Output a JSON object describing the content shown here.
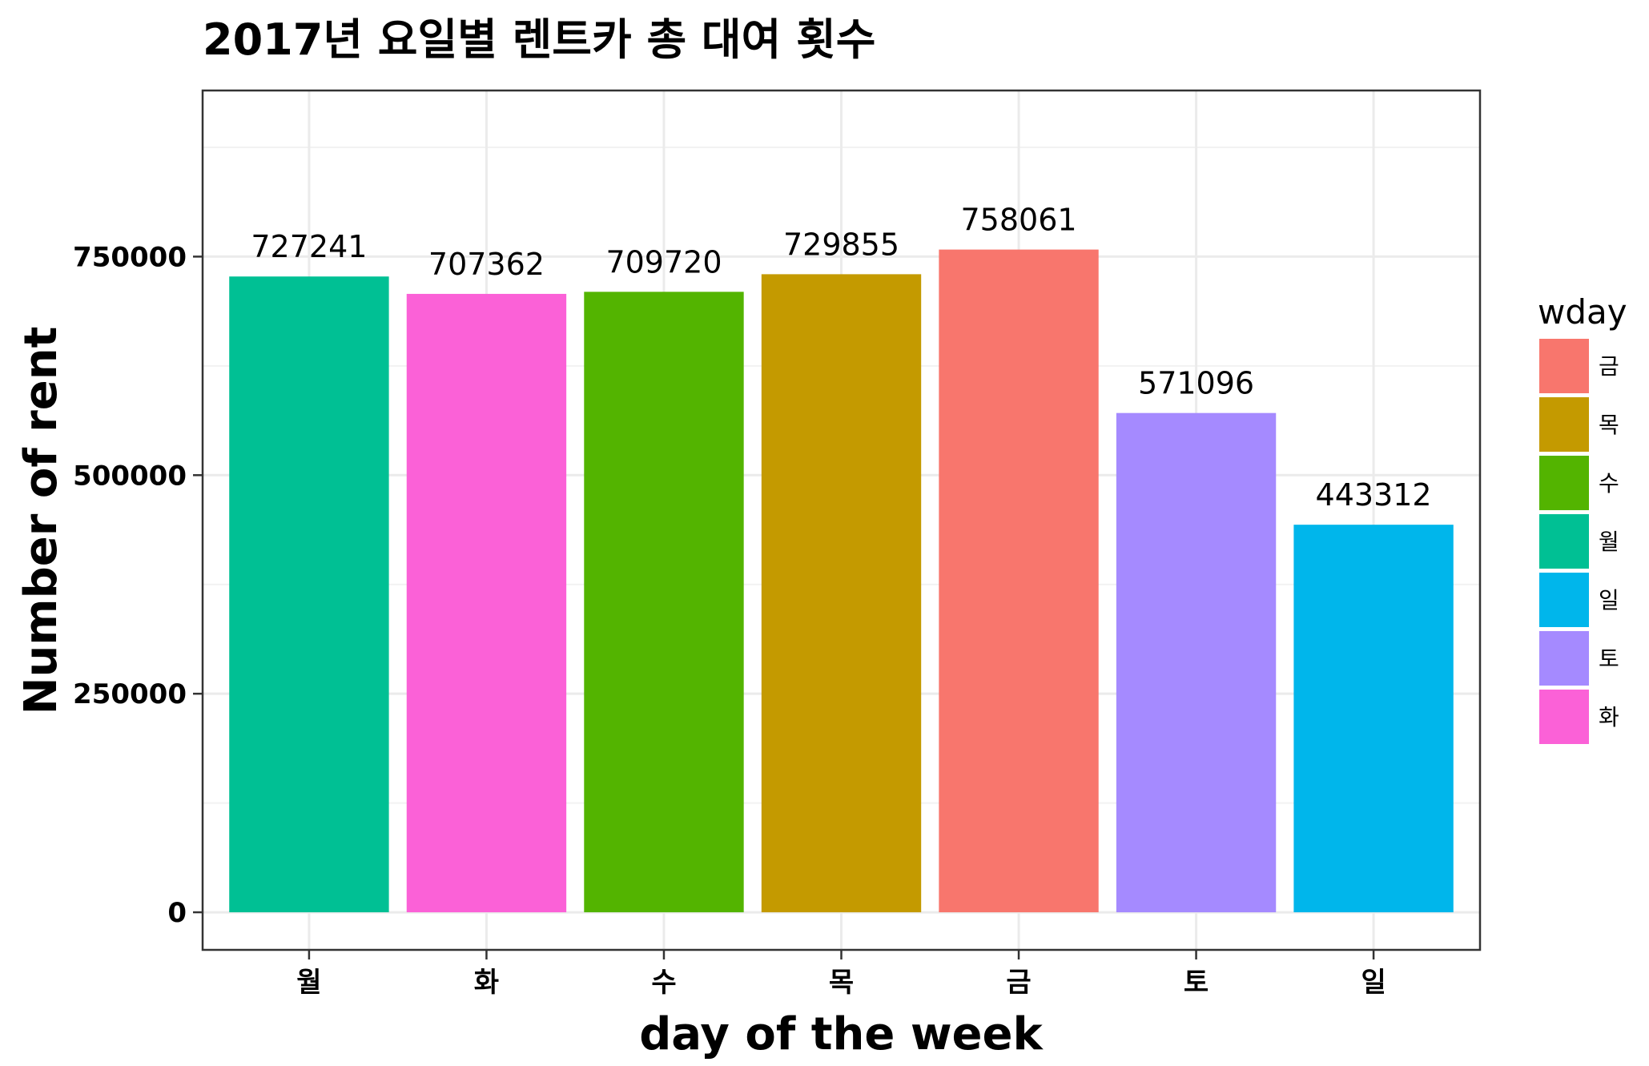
{
  "chart_data": {
    "type": "bar",
    "title": "2017년 요일별 렌트카 총 대여 횟수",
    "xlabel": "day of the week",
    "ylabel": "Number of rent",
    "categories": [
      "월",
      "화",
      "수",
      "목",
      "금",
      "토",
      "일"
    ],
    "values": [
      727241,
      707362,
      709720,
      729855,
      758061,
      571096,
      443312
    ],
    "data_labels": [
      "727241",
      "707362",
      "709720",
      "729855",
      "758061",
      "571096",
      "443312"
    ],
    "y_ticks": [
      0,
      250000,
      500000,
      750000
    ],
    "y_tick_labels": [
      "0",
      "250000",
      "500000",
      "750000"
    ],
    "ylim": [
      -43000,
      940000
    ],
    "grid": true,
    "legend": {
      "title": "wday",
      "placement": "right",
      "entries": [
        {
          "label": "금",
          "color": "#F8766D"
        },
        {
          "label": "목",
          "color": "#C49A00"
        },
        {
          "label": "수",
          "color": "#53B400"
        },
        {
          "label": "월",
          "color": "#00C094"
        },
        {
          "label": "일",
          "color": "#00B6EB"
        },
        {
          "label": "토",
          "color": "#A58AFF"
        },
        {
          "label": "화",
          "color": "#FB61D7"
        }
      ]
    },
    "colors": {
      "월": "#00C094",
      "화": "#FB61D7",
      "수": "#53B400",
      "목": "#C49A00",
      "금": "#F8766D",
      "토": "#A58AFF",
      "일": "#00B6EB"
    }
  }
}
